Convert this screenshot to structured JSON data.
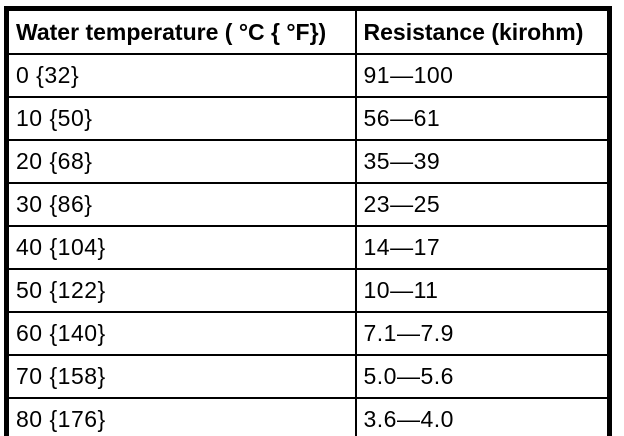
{
  "table": {
    "columns": [
      {
        "label": "Water temperature ( °C { °F})"
      },
      {
        "label": "Resistance (kirohm)"
      }
    ],
    "rows": [
      {
        "temperature": "0 {32}",
        "resistance": "91—100"
      },
      {
        "temperature": "10 {50}",
        "resistance": "56—61"
      },
      {
        "temperature": "20 {68}",
        "resistance": "35—39"
      },
      {
        "temperature": "30 {86}",
        "resistance": "23—25"
      },
      {
        "temperature": "40 {104}",
        "resistance": "14—17"
      },
      {
        "temperature": "50 {122}",
        "resistance": "10—11"
      },
      {
        "temperature": "60 {140}",
        "resistance": "7.1—7.9"
      },
      {
        "temperature": "70 {158}",
        "resistance": "5.0—5.6"
      },
      {
        "temperature": "80 {176}",
        "resistance": "3.6—4.0"
      }
    ],
    "colors": {
      "border": "#000000",
      "text": "#000000",
      "background": "#ffffff"
    }
  }
}
